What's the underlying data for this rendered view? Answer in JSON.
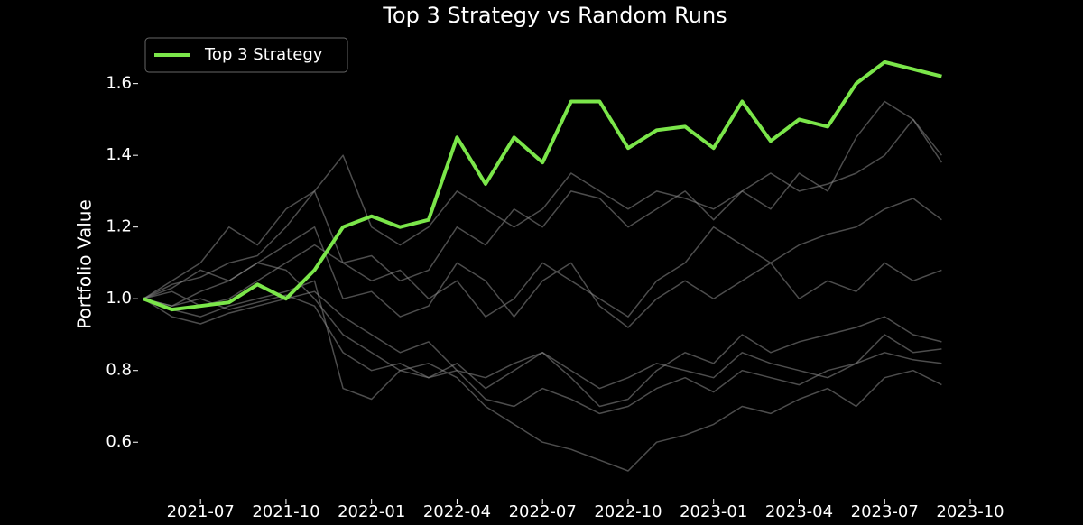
{
  "chart_data": {
    "type": "line",
    "title": "Top 3 Strategy vs Random Runs",
    "y_label": "Portfolio Value",
    "x": [
      "2021-05",
      "2021-06",
      "2021-07",
      "2021-08",
      "2021-09",
      "2021-10",
      "2021-11",
      "2021-12",
      "2022-01",
      "2022-02",
      "2022-03",
      "2022-04",
      "2022-05",
      "2022-06",
      "2022-07",
      "2022-08",
      "2022-09",
      "2022-10",
      "2022-11",
      "2022-12",
      "2023-01",
      "2023-02",
      "2023-03",
      "2023-04",
      "2023-05",
      "2023-06",
      "2023-07",
      "2023-08",
      "2023-09"
    ],
    "xlim": [
      "2021-05",
      "2023-10"
    ],
    "xticks": [
      "2021-07",
      "2021-10",
      "2022-01",
      "2022-04",
      "2022-07",
      "2022-10",
      "2023-01",
      "2023-04",
      "2023-07",
      "2023-10"
    ],
    "ylim": [
      0.5,
      1.75
    ],
    "yticks": [
      0.6,
      0.8,
      {
        "value": 1.0,
        "label": "1.0"
      },
      1.2,
      1.4,
      1.6
    ],
    "legend": "upper left",
    "series": [
      {
        "color": "#8c8c8c",
        "values": [
          1.0,
          1.05,
          1.1,
          1.2,
          1.15,
          1.25,
          1.3,
          1.1,
          1.12,
          1.05,
          1.08,
          1.2,
          1.15,
          1.25,
          1.2,
          1.3,
          1.28,
          1.2,
          1.25,
          1.3,
          1.22,
          1.3,
          1.25,
          1.35,
          1.3,
          1.45,
          1.55,
          1.5,
          1.4
        ]
      },
      {
        "color": "#8c8c8c",
        "values": [
          1.0,
          0.98,
          1.02,
          1.05,
          1.1,
          1.08,
          1.0,
          0.9,
          0.85,
          0.8,
          0.82,
          0.78,
          0.7,
          0.65,
          0.6,
          0.58,
          0.55,
          0.52,
          0.6,
          0.62,
          0.65,
          0.7,
          0.68,
          0.72,
          0.75,
          0.7,
          0.78,
          0.8,
          0.76
        ]
      },
      {
        "color": "#8c8c8c",
        "values": [
          1.0,
          1.02,
          0.98,
          1.0,
          1.05,
          1.1,
          1.15,
          1.1,
          1.05,
          1.08,
          1.0,
          1.05,
          0.95,
          1.0,
          1.1,
          1.05,
          1.0,
          0.95,
          1.05,
          1.1,
          1.2,
          1.15,
          1.1,
          1.15,
          1.18,
          1.2,
          1.25,
          1.28,
          1.22
        ]
      },
      {
        "color": "#8c8c8c",
        "values": [
          1.0,
          0.97,
          0.95,
          0.98,
          1.0,
          1.02,
          1.05,
          0.75,
          0.72,
          0.8,
          0.78,
          0.82,
          0.75,
          0.8,
          0.85,
          0.78,
          0.7,
          0.72,
          0.8,
          0.85,
          0.82,
          0.9,
          0.85,
          0.88,
          0.9,
          0.92,
          0.95,
          0.9,
          0.88
        ]
      },
      {
        "color": "#8c8c8c",
        "values": [
          1.0,
          1.03,
          1.08,
          1.05,
          1.1,
          1.15,
          1.2,
          1.0,
          1.02,
          0.95,
          0.98,
          1.1,
          1.05,
          0.95,
          1.05,
          1.1,
          0.98,
          0.92,
          1.0,
          1.05,
          1.0,
          1.05,
          1.1,
          1.0,
          1.05,
          1.02,
          1.1,
          1.05,
          1.08
        ]
      },
      {
        "color": "#8c8c8c",
        "values": [
          1.0,
          0.95,
          0.93,
          0.96,
          0.98,
          1.0,
          1.02,
          0.95,
          0.9,
          0.85,
          0.88,
          0.8,
          0.78,
          0.82,
          0.85,
          0.8,
          0.75,
          0.78,
          0.82,
          0.8,
          0.78,
          0.85,
          0.82,
          0.8,
          0.78,
          0.82,
          0.85,
          0.83,
          0.82
        ]
      },
      {
        "color": "#8c8c8c",
        "values": [
          1.0,
          1.04,
          1.06,
          1.1,
          1.12,
          1.2,
          1.3,
          1.4,
          1.2,
          1.15,
          1.2,
          1.3,
          1.25,
          1.2,
          1.25,
          1.35,
          1.3,
          1.25,
          1.3,
          1.28,
          1.25,
          1.3,
          1.35,
          1.3,
          1.32,
          1.35,
          1.4,
          1.5,
          1.38
        ]
      },
      {
        "color": "#8c8c8c",
        "values": [
          1.0,
          0.98,
          1.0,
          0.97,
          0.99,
          1.01,
          0.98,
          0.85,
          0.8,
          0.82,
          0.78,
          0.8,
          0.72,
          0.7,
          0.75,
          0.72,
          0.68,
          0.7,
          0.75,
          0.78,
          0.74,
          0.8,
          0.78,
          0.76,
          0.8,
          0.82,
          0.9,
          0.85,
          0.86
        ]
      },
      {
        "name": "Top 3 Strategy",
        "color": "#7be64a",
        "values": [
          1.0,
          0.97,
          0.98,
          0.99,
          1.04,
          1.0,
          1.08,
          1.2,
          1.23,
          1.2,
          1.22,
          1.45,
          1.32,
          1.45,
          1.38,
          1.55,
          1.55,
          1.42,
          1.47,
          1.48,
          1.42,
          1.55,
          1.44,
          1.5,
          1.48,
          1.6,
          1.66,
          1.64,
          1.62
        ]
      }
    ]
  }
}
